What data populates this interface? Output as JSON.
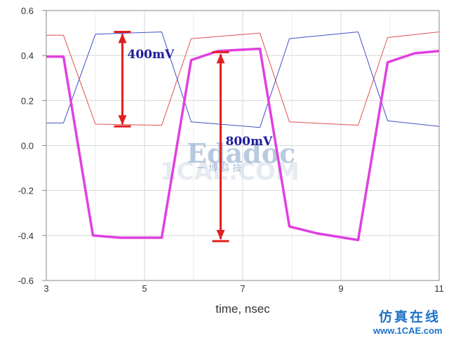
{
  "chart_data": {
    "type": "line",
    "title": "",
    "xlabel": "time, nsec",
    "ylabel": "",
    "xlim": [
      3,
      11
    ],
    "ylim": [
      -0.6,
      0.6
    ],
    "x_ticks": [
      3,
      5,
      7,
      9,
      11
    ],
    "x_tick_labels": [
      "3",
      "5",
      "7",
      "9",
      "11"
    ],
    "y_ticks": [
      -0.6,
      -0.4,
      -0.2,
      0.0,
      0.2,
      0.4,
      0.6
    ],
    "y_tick_labels": [
      "-0.6",
      "-0.4",
      "-0.2",
      "0.0",
      "0.2",
      "0.4",
      "0.6"
    ],
    "grid": true,
    "legend": "none",
    "series": [
      {
        "color": "#e05050",
        "x": [
          3.0,
          3.35,
          4.0,
          5.35,
          5.95,
          7.35,
          7.95,
          9.35,
          9.95,
          11.0
        ],
        "y": [
          0.49,
          0.49,
          0.095,
          0.09,
          0.475,
          0.5,
          0.105,
          0.09,
          0.48,
          0.505
        ]
      },
      {
        "color": "#4050c8",
        "x": [
          3.0,
          3.35,
          4.0,
          5.35,
          5.95,
          7.35,
          7.95,
          9.35,
          9.95,
          11.0
        ],
        "y": [
          0.1,
          0.1,
          0.495,
          0.505,
          0.105,
          0.08,
          0.475,
          0.505,
          0.11,
          0.085
        ]
      },
      {
        "color": "#e040e0",
        "x": [
          3.0,
          3.35,
          3.95,
          4.5,
          5.35,
          5.95,
          6.5,
          7.35,
          7.95,
          8.5,
          9.35,
          9.95,
          10.5,
          11.0
        ],
        "y": [
          0.395,
          0.395,
          -0.4,
          -0.41,
          -0.41,
          0.38,
          0.42,
          0.43,
          -0.36,
          -0.39,
          -0.42,
          0.37,
          0.41,
          0.42
        ]
      }
    ],
    "annotations": [
      {
        "text": "400mV",
        "x": 4.55,
        "y_from": 0.505,
        "y_to": 0.085,
        "color": "#e02020"
      },
      {
        "text": "800mV",
        "x": 6.55,
        "y_from": 0.415,
        "y_to": -0.425,
        "color": "#e02020"
      }
    ]
  },
  "watermark": {
    "logo_main": "Edadoc",
    "logo_cn": "一 博 科 技",
    "faint": "1CAE.COM",
    "brand_cn": "仿真在线",
    "brand_url": "www.1CAE.com"
  }
}
